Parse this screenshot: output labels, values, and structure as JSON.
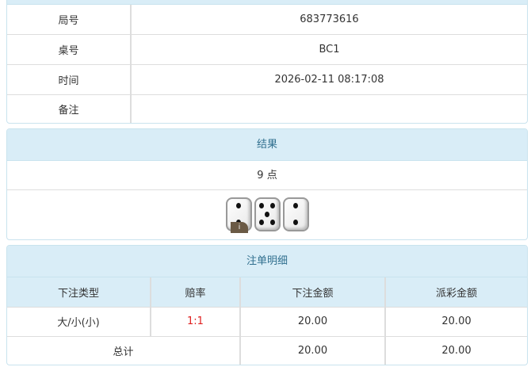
{
  "info": {
    "rows": [
      {
        "label": "局号",
        "value": "683773616"
      },
      {
        "label": "桌号",
        "value": "BC1"
      },
      {
        "label": "时间",
        "value": "2026-02-11 08:17:08"
      },
      {
        "label": "备注",
        "value": ""
      }
    ]
  },
  "result": {
    "title": "结果",
    "points": "9 点",
    "dice": [
      2,
      5,
      2
    ],
    "info_icon": "i"
  },
  "bets": {
    "title": "注单明细",
    "headers": [
      "下注类型",
      "赔率",
      "下注金额",
      "派彩金额"
    ],
    "rows": [
      {
        "type": "大/小(小)",
        "odds": "1:1",
        "amount": "20.00",
        "payout": "20.00"
      }
    ],
    "total": {
      "label": "总计",
      "amount": "20.00",
      "payout": "20.00"
    },
    "odds_color": "#e02020"
  }
}
